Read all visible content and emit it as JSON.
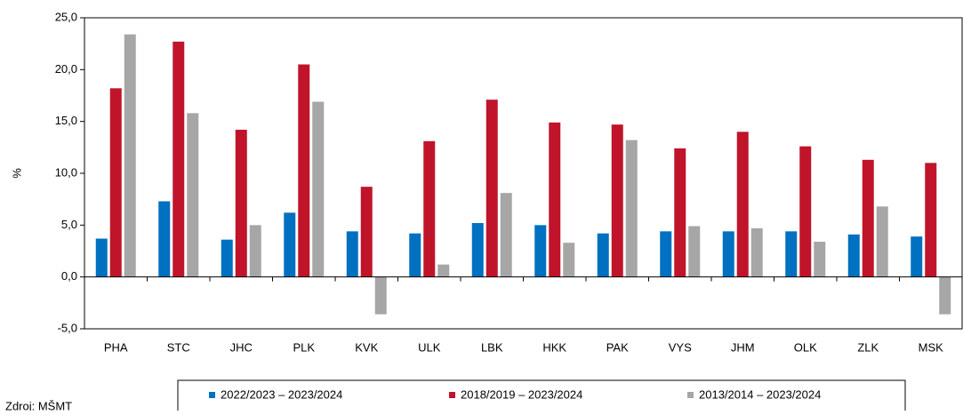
{
  "chart_data": {
    "type": "bar",
    "y_label": "%",
    "source": "Zdroj: MŠMT",
    "categories": [
      "PHA",
      "STC",
      "JHC",
      "PLK",
      "KVK",
      "ULK",
      "LBK",
      "HKK",
      "PAK",
      "VYS",
      "JHM",
      "OLK",
      "ZLK",
      "MSK"
    ],
    "series": [
      {
        "name": "2022/2023 – 2023/2024",
        "color": "#0070c0",
        "values": [
          3.7,
          7.3,
          3.6,
          6.2,
          4.4,
          4.2,
          5.2,
          5.0,
          4.2,
          4.4,
          4.4,
          4.4,
          4.1,
          3.9
        ]
      },
      {
        "name": "2018/2019 – 2023/2024",
        "color": "#c0142b",
        "values": [
          18.2,
          22.7,
          14.2,
          20.5,
          8.7,
          13.1,
          17.1,
          14.9,
          14.7,
          12.4,
          14.0,
          12.6,
          11.3,
          11.0
        ]
      },
      {
        "name": "2013/2014 – 2023/2024",
        "color": "#a6a6a6",
        "values": [
          23.4,
          15.8,
          5.0,
          16.9,
          -3.6,
          1.2,
          8.1,
          3.3,
          13.2,
          4.9,
          4.7,
          3.4,
          6.8,
          -3.6
        ]
      }
    ],
    "ylim": [
      -5,
      25
    ],
    "yticks": [
      {
        "value": -5,
        "label": "-5,0"
      },
      {
        "value": 0,
        "label": "0,0"
      },
      {
        "value": 5,
        "label": "5,0"
      },
      {
        "value": 10,
        "label": "10,0"
      },
      {
        "value": 15,
        "label": "15,0"
      },
      {
        "value": 20,
        "label": "20,0"
      },
      {
        "value": 25,
        "label": "25,0"
      }
    ],
    "legend": "bottom"
  }
}
